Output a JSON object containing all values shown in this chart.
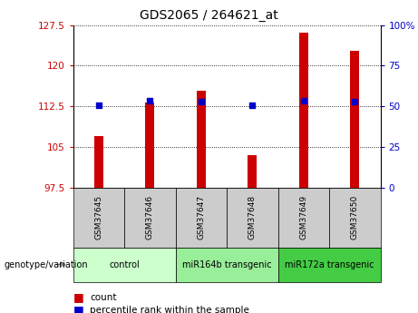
{
  "title": "GDS2065 / 264621_at",
  "samples": [
    "GSM37645",
    "GSM37646",
    "GSM37647",
    "GSM37648",
    "GSM37649",
    "GSM37650"
  ],
  "count_values": [
    107.1,
    113.2,
    115.4,
    103.6,
    126.1,
    122.8
  ],
  "percentile_values": [
    50.5,
    53.5,
    53.0,
    50.5,
    53.5,
    53.0
  ],
  "ylim_left": [
    97.5,
    127.5
  ],
  "ylim_right": [
    0,
    100
  ],
  "yticks_left": [
    97.5,
    105.0,
    112.5,
    120.0,
    127.5
  ],
  "ytick_labels_left": [
    "97.5",
    "105",
    "112.5",
    "120",
    "127.5"
  ],
  "yticks_right": [
    0,
    25,
    50,
    75,
    100
  ],
  "ytick_labels_right": [
    "0",
    "25",
    "50",
    "75",
    "100%"
  ],
  "bar_color": "#cc0000",
  "dot_color": "#0000cc",
  "groups": [
    {
      "label": "control",
      "start": 0,
      "end": 2,
      "color": "#ccffcc"
    },
    {
      "label": "miR164b transgenic",
      "start": 2,
      "end": 4,
      "color": "#99ee99"
    },
    {
      "label": "miR172a transgenic",
      "start": 4,
      "end": 6,
      "color": "#44cc44"
    }
  ],
  "left_axis_color": "#cc0000",
  "right_axis_color": "#0000cc",
  "bar_width": 0.18,
  "dot_size": 18,
  "genotype_label": "genotype/variation",
  "legend_count": "count",
  "legend_percentile": "percentile rank within the sample",
  "bg_color": "#ffffff",
  "sample_box_color": "#cccccc",
  "title_fontsize": 10,
  "tick_fontsize": 7.5,
  "sample_fontsize": 6.5,
  "group_fontsize": 7,
  "legend_fontsize": 7.5,
  "genotype_fontsize": 7
}
